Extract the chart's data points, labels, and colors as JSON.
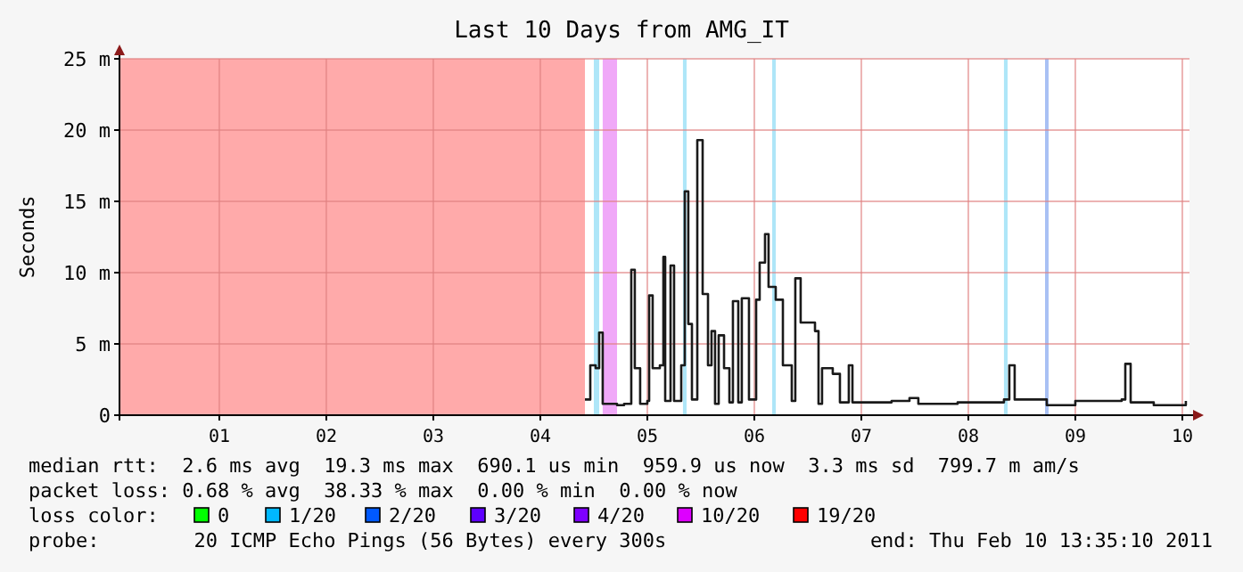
{
  "chart_data": {
    "type": "step",
    "title": "Last 10 Days from AMG_IT",
    "ylabel": "Seconds",
    "xlim": [
      0.067,
      10.067
    ],
    "ylim": [
      0,
      25
    ],
    "xticks": [
      {
        "value": 1,
        "label": "01"
      },
      {
        "value": 2,
        "label": "02"
      },
      {
        "value": 3,
        "label": "03"
      },
      {
        "value": 4,
        "label": "04"
      },
      {
        "value": 5,
        "label": "05"
      },
      {
        "value": 6,
        "label": "06"
      },
      {
        "value": 7,
        "label": "07"
      },
      {
        "value": 8,
        "label": "08"
      },
      {
        "value": 9,
        "label": "09"
      },
      {
        "value": 10,
        "label": "10"
      }
    ],
    "yticks": [
      {
        "value": 0,
        "label": "0"
      },
      {
        "value": 5,
        "label": "5 m"
      },
      {
        "value": 10,
        "label": "10 m"
      },
      {
        "value": 15,
        "label": "15 m"
      },
      {
        "value": 20,
        "label": "20 m"
      },
      {
        "value": 25,
        "label": "25 m"
      }
    ],
    "grid": true,
    "bands": [
      {
        "axis": "x",
        "from": 0.067,
        "to": 4.417,
        "color": "#ffaaaa"
      },
      {
        "axis": "x",
        "from": 4.5,
        "to": 4.55,
        "color": "#aee6f8"
      },
      {
        "axis": "x",
        "from": 4.583,
        "to": 4.717,
        "color": "#f0a8f8"
      },
      {
        "axis": "x",
        "from": 5.333,
        "to": 5.367,
        "color": "#aee6f8"
      },
      {
        "axis": "x",
        "from": 6.167,
        "to": 6.2,
        "color": "#aee6f8"
      },
      {
        "axis": "x",
        "from": 8.333,
        "to": 8.367,
        "color": "#aee6f8"
      },
      {
        "axis": "x",
        "from": 8.717,
        "to": 8.75,
        "color": "#a8c0f4"
      }
    ],
    "series": [
      {
        "color": "#1a1a1a",
        "x": [
          4.417,
          4.467,
          4.517,
          4.55,
          4.583,
          4.717,
          4.783,
          4.85,
          4.883,
          4.933,
          5.0,
          5.017,
          5.05,
          5.117,
          5.15,
          5.167,
          5.217,
          5.25,
          5.317,
          5.35,
          5.383,
          5.417,
          5.467,
          5.517,
          5.567,
          5.6,
          5.633,
          5.667,
          5.717,
          5.767,
          5.8,
          5.85,
          5.883,
          5.95,
          6.017,
          6.05,
          6.1,
          6.133,
          6.2,
          6.267,
          6.35,
          6.383,
          6.433,
          6.567,
          6.6,
          6.633,
          6.733,
          6.8,
          6.883,
          6.917,
          7.283,
          7.45,
          7.533,
          7.9,
          8.333,
          8.383,
          8.433,
          8.733,
          9.0,
          9.433,
          9.467,
          9.517,
          9.733,
          10.033
        ],
        "values": [
          1.1,
          3.5,
          3.3,
          5.8,
          0.8,
          0.7,
          0.8,
          10.2,
          3.3,
          0.8,
          1.0,
          8.4,
          3.3,
          3.5,
          11.1,
          1.0,
          10.5,
          1.0,
          3.5,
          15.7,
          6.4,
          1.1,
          19.3,
          8.5,
          3.5,
          5.9,
          0.8,
          5.6,
          3.3,
          0.9,
          8.0,
          0.9,
          8.2,
          1.1,
          8.1,
          10.7,
          12.7,
          9.0,
          8.1,
          3.5,
          1.0,
          9.6,
          6.5,
          5.9,
          0.8,
          3.3,
          2.9,
          0.9,
          3.5,
          0.9,
          1.0,
          1.2,
          0.8,
          0.9,
          1.1,
          3.5,
          1.1,
          0.7,
          1.0,
          1.1,
          3.6,
          0.9,
          0.7,
          1.0
        ]
      }
    ],
    "annotations": [
      "median rtt:  2.6 ms avg  19.3 ms max  690.1 us min  959.9 us now  3.3 ms sd  799.7 m am/s",
      "packet loss: 0.68 % avg  38.33 % max  0.00 % min  0.00 % now",
      "loss color:",
      "0",
      "1/20",
      "2/20",
      "3/20",
      "4/20",
      "10/20",
      "19/20",
      "probe:        20 ICMP Echo Pings (56 Bytes) every 300s",
      "end: Thu Feb 10 13:35:10 2011"
    ]
  }
}
